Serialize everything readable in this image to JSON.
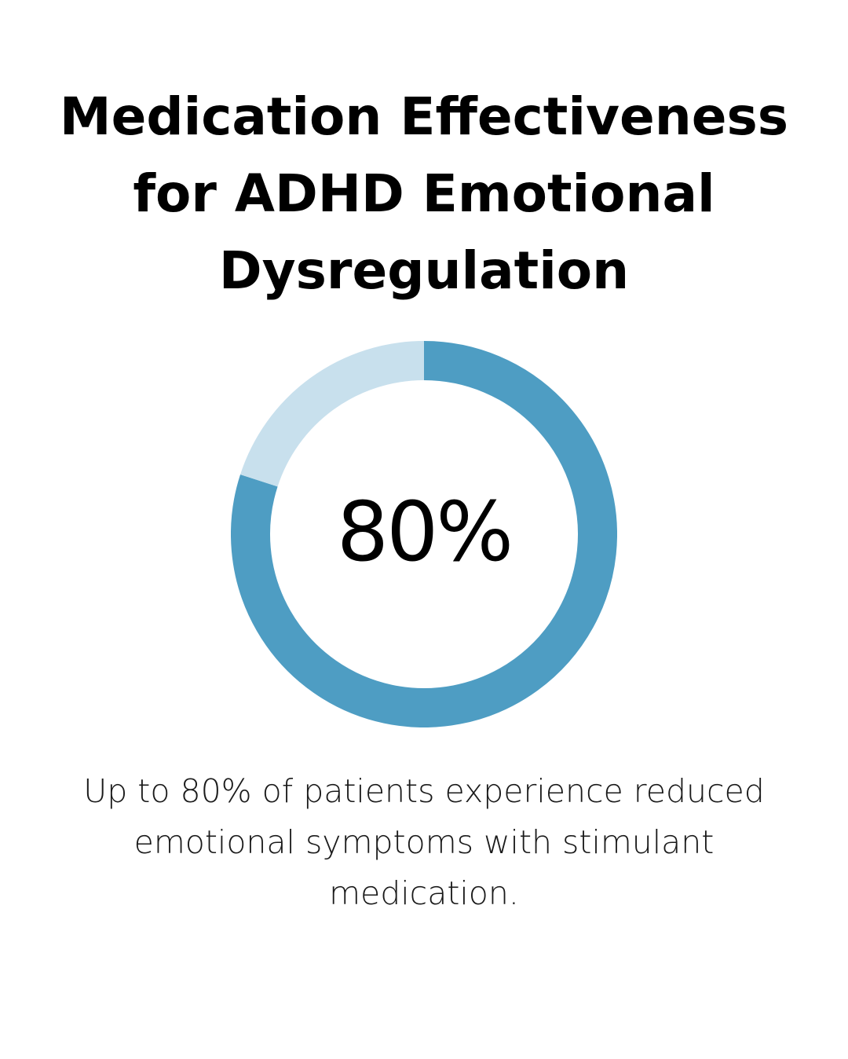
{
  "title": {
    "lines": [
      "Medication Effectiveness",
      "for ADHD Emotional",
      "Dysregulation"
    ]
  },
  "caption": {
    "lines": [
      "Up to 80% of patients experience reduced",
      "emotional symptoms with stimulant",
      "medication."
    ]
  },
  "colors": {
    "filled": "#4e9dc3",
    "remainder": "#c8e0ed"
  },
  "chart_data": {
    "type": "pie",
    "style": "donut",
    "center_label": "80%",
    "slices": [
      {
        "value": 80,
        "color": "#4e9dc3"
      },
      {
        "value": 20,
        "color": "#c8e0ed"
      }
    ]
  }
}
